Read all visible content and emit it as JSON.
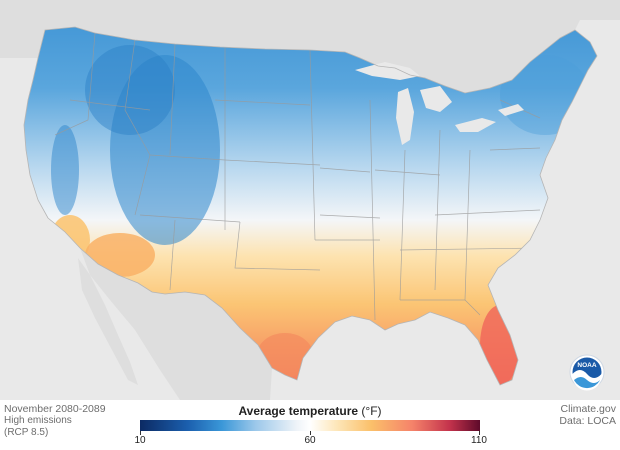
{
  "map": {
    "period": "November 2080-2089",
    "scenario_line1": "High emissions",
    "scenario_line2": "(RCP 8.5)"
  },
  "legend": {
    "title": "Average temperature",
    "unit": "(°F)",
    "ticks": [
      "10",
      "60",
      "110"
    ],
    "colors": {
      "cold": "#0c2a63",
      "cool": "#3a97d8",
      "neutral": "#ffffff",
      "warm": "#fbc06a",
      "hot": "#c4334c",
      "hottest": "#5e0a2a"
    }
  },
  "credits": {
    "source": "Climate.gov",
    "data": "Data: LOCA"
  },
  "logo": {
    "text": "NOAA"
  }
}
